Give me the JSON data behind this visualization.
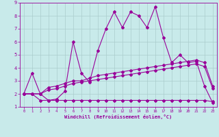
{
  "xlabel": "Windchill (Refroidissement éolien,°C)",
  "bg_color": "#c8eaea",
  "line_color": "#990099",
  "grid_color": "#aacccc",
  "xlim": [
    -0.5,
    23.5
  ],
  "ylim": [
    1,
    9
  ],
  "xticks": [
    0,
    1,
    2,
    3,
    4,
    5,
    6,
    7,
    8,
    9,
    10,
    11,
    12,
    13,
    14,
    15,
    16,
    17,
    18,
    19,
    20,
    21,
    22,
    23
  ],
  "yticks": [
    1,
    2,
    3,
    4,
    5,
    6,
    7,
    8,
    9
  ],
  "series": [
    {
      "x": [
        0,
        1,
        2,
        3,
        4,
        5,
        6,
        7,
        8,
        9,
        10,
        11,
        12,
        13,
        14,
        15,
        16,
        17,
        18,
        19,
        20,
        21,
        22,
        23
      ],
      "y": [
        2.0,
        3.6,
        2.0,
        1.5,
        1.6,
        2.2,
        6.0,
        3.6,
        2.9,
        5.3,
        7.0,
        8.3,
        7.1,
        8.3,
        8.0,
        7.1,
        8.7,
        6.3,
        4.4,
        5.0,
        4.4,
        4.5,
        2.6,
        1.3
      ]
    },
    {
      "x": [
        0,
        1,
        2,
        3,
        4,
        5,
        6,
        7,
        8,
        9,
        10,
        11,
        12,
        13,
        14,
        15,
        16,
        17,
        18,
        19,
        20,
        21,
        22,
        23
      ],
      "y": [
        2.0,
        2.0,
        2.0,
        2.5,
        2.6,
        2.8,
        3.0,
        3.0,
        3.2,
        3.4,
        3.5,
        3.6,
        3.7,
        3.8,
        3.9,
        4.0,
        4.1,
        4.2,
        4.3,
        4.4,
        4.5,
        4.6,
        4.4,
        2.6
      ]
    },
    {
      "x": [
        0,
        1,
        2,
        3,
        4,
        5,
        6,
        7,
        8,
        9,
        10,
        11,
        12,
        13,
        14,
        15,
        16,
        17,
        18,
        19,
        20,
        21,
        22,
        23
      ],
      "y": [
        2.0,
        2.0,
        2.0,
        2.3,
        2.4,
        2.6,
        2.8,
        2.9,
        3.0,
        3.1,
        3.2,
        3.3,
        3.4,
        3.5,
        3.6,
        3.7,
        3.8,
        3.9,
        4.0,
        4.1,
        4.2,
        4.3,
        4.1,
        2.4
      ]
    },
    {
      "x": [
        0,
        1,
        2,
        3,
        4,
        5,
        6,
        7,
        8,
        9,
        10,
        11,
        12,
        13,
        14,
        15,
        16,
        17,
        18,
        19,
        20,
        21,
        22,
        23
      ],
      "y": [
        2.0,
        2.0,
        1.5,
        1.5,
        1.5,
        1.5,
        1.5,
        1.5,
        1.5,
        1.5,
        1.5,
        1.5,
        1.5,
        1.5,
        1.5,
        1.5,
        1.5,
        1.5,
        1.5,
        1.5,
        1.5,
        1.5,
        1.5,
        1.4
      ]
    }
  ]
}
